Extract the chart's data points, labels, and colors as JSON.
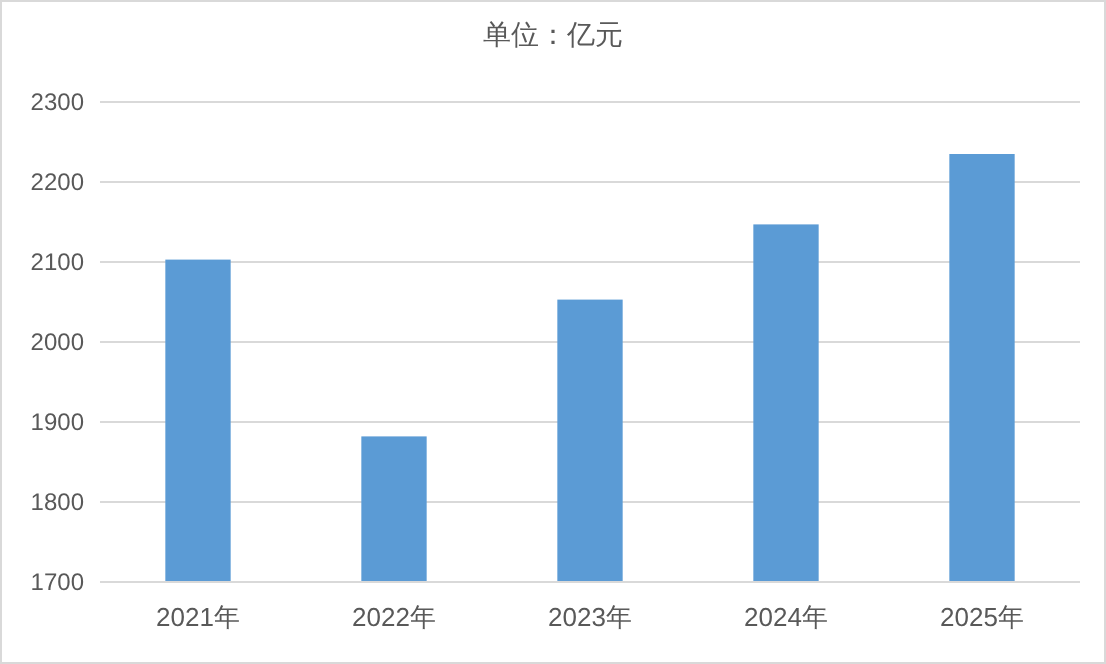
{
  "chart_data": {
    "type": "bar",
    "title": "单位：亿元",
    "categories": [
      "2021年",
      "2022年",
      "2023年",
      "2024年",
      "2025年"
    ],
    "values": [
      2103,
      1882,
      2053,
      2147,
      2235
    ],
    "color": "#5b9bd5",
    "ylim": [
      1700,
      2300
    ],
    "yticks": [
      1700,
      1800,
      1900,
      2000,
      2100,
      2200,
      2300
    ],
    "grid": "y"
  }
}
